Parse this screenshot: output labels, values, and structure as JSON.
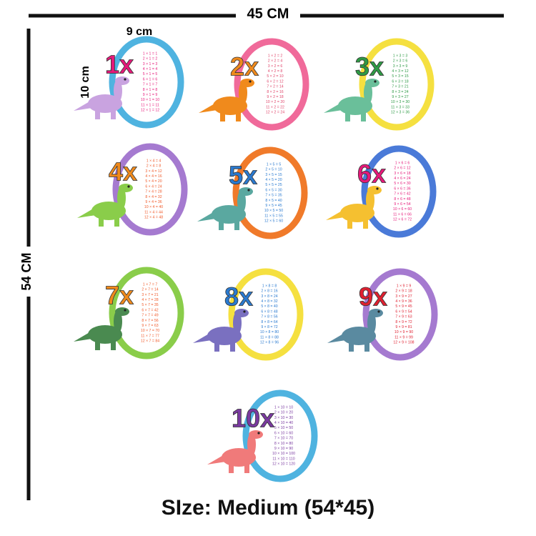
{
  "dimensions": {
    "width": "45 CM",
    "height": "54 CM",
    "egg_width": "9 cm",
    "egg_height": "10 cm"
  },
  "footer": "SIze: Medium (54*45)",
  "eggs": [
    {
      "label": "1x",
      "table": [
        "1 × 1 = 1",
        "2 × 1 = 2",
        "3 × 1 = 3",
        "4 × 1 = 4",
        "5 × 1 = 5",
        "6 × 1 = 6",
        "7 × 1 = 7",
        "8 × 1 = 8",
        "9 × 1 = 9",
        "10 × 1 = 10",
        "11 × 1 = 11",
        "12 × 1 = 12"
      ]
    },
    {
      "label": "2x",
      "table": [
        "1 × 2 = 2",
        "2 × 2 = 4",
        "3 × 2 = 6",
        "4 × 2 = 8",
        "5 × 2 = 10",
        "6 × 2 = 12",
        "7 × 2 = 14",
        "8 × 2 = 16",
        "9 × 2 = 18",
        "10 × 2 = 20",
        "11 × 2 = 22",
        "12 × 2 = 24"
      ]
    },
    {
      "label": "3x",
      "table": [
        "1 × 3 = 3",
        "2 × 3 = 6",
        "3 × 3 = 9",
        "4 × 3 = 12",
        "5 × 3 = 15",
        "6 × 3 = 18",
        "7 × 3 = 21",
        "8 × 3 = 24",
        "9 × 3 = 27",
        "10 × 3 = 30",
        "11 × 3 = 33",
        "12 × 3 = 36"
      ]
    },
    {
      "label": "4x",
      "table": [
        "1 × 4 = 4",
        "2 × 4 = 8",
        "3 × 4 = 12",
        "4 × 4 = 16",
        "5 × 4 = 20",
        "6 × 4 = 24",
        "7 × 4 = 28",
        "8 × 4 = 32",
        "9 × 4 = 36",
        "10 × 4 = 40",
        "11 × 4 = 44",
        "12 × 4 = 48"
      ]
    },
    {
      "label": "5x",
      "table": [
        "1 × 5 = 5",
        "2 × 5 = 10",
        "3 × 5 = 15",
        "4 × 5 = 20",
        "5 × 5 = 25",
        "6 × 5 = 30",
        "7 × 5 = 35",
        "8 × 5 = 40",
        "9 × 5 = 45",
        "10 × 5 = 50",
        "11 × 5 = 55",
        "12 × 5 = 60"
      ]
    },
    {
      "label": "6x",
      "table": [
        "1 × 6 = 6",
        "2 × 6 = 12",
        "3 × 6 = 18",
        "4 × 6 = 24",
        "5 × 6 = 30",
        "6 × 6 = 36",
        "7 × 6 = 42",
        "8 × 6 = 48",
        "9 × 6 = 54",
        "10 × 6 = 60",
        "11 × 6 = 66",
        "12 × 6 = 72"
      ]
    },
    {
      "label": "7x",
      "table": [
        "1 × 7 = 7",
        "2 × 7 = 14",
        "3 × 7 = 21",
        "4 × 7 = 28",
        "5 × 7 = 35",
        "6 × 7 = 42",
        "7 × 7 = 49",
        "8 × 7 = 56",
        "9 × 7 = 63",
        "10 × 7 = 70",
        "11 × 7 = 77",
        "12 × 7 = 84"
      ]
    },
    {
      "label": "8x",
      "table": [
        "1 × 8 = 8",
        "2 × 8 = 16",
        "3 × 8 = 24",
        "4 × 8 = 32",
        "5 × 8 = 40",
        "6 × 8 = 48",
        "7 × 8 = 56",
        "8 × 8 = 64",
        "9 × 8 = 72",
        "10 × 8 = 80",
        "11 × 8 = 88",
        "12 × 8 = 96"
      ]
    },
    {
      "label": "9x",
      "table": [
        "1 × 9 = 9",
        "2 × 9 = 18",
        "3 × 9 = 27",
        "4 × 9 = 36",
        "5 × 9 = 45",
        "6 × 9 = 54",
        "7 × 9 = 63",
        "8 × 9 = 72",
        "9 × 9 = 81",
        "10 × 9 = 90",
        "11 × 9 = 99",
        "12 × 9 = 108"
      ]
    },
    {
      "label": "10x",
      "table": [
        "1 × 10 = 10",
        "2 × 10 = 20",
        "3 × 10 = 30",
        "4 × 10 = 40",
        "5 × 10 = 50",
        "6 × 10 = 60",
        "7 × 10 = 70",
        "8 × 10 = 80",
        "9 × 10 = 90",
        "10 × 10 = 100",
        "11 × 10 = 110",
        "12 × 10 = 120"
      ]
    }
  ]
}
